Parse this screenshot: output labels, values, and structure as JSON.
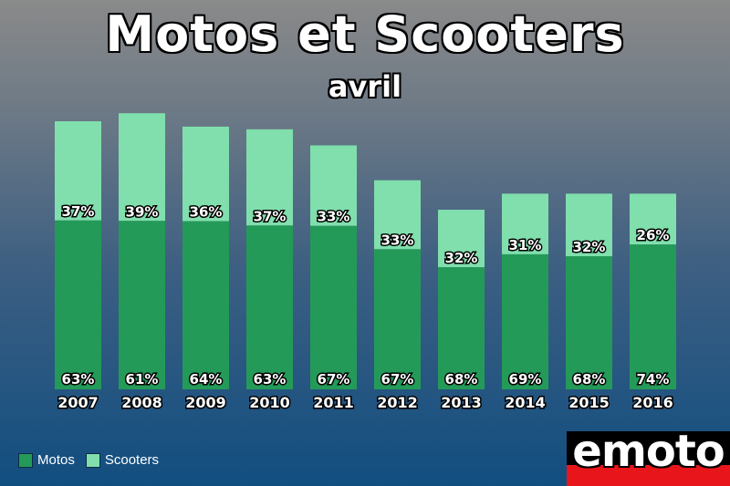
{
  "chart_data": {
    "type": "bar",
    "stacked": true,
    "title": "Motos et Scooters",
    "subtitle": "avril",
    "categories": [
      "2007",
      "2008",
      "2009",
      "2010",
      "2011",
      "2012",
      "2013",
      "2014",
      "2015",
      "2016"
    ],
    "totals_relative": [
      100,
      103,
      98,
      97,
      91,
      78,
      67,
      73,
      73,
      73
    ],
    "series": [
      {
        "name": "Motos",
        "color": "#249a58",
        "percent_labels": [
          "63%",
          "61%",
          "64%",
          "63%",
          "67%",
          "67%",
          "68%",
          "69%",
          "68%",
          "74%"
        ],
        "values": [
          63,
          61,
          64,
          63,
          67,
          67,
          68,
          69,
          68,
          74
        ]
      },
      {
        "name": "Scooters",
        "color": "#80dfac",
        "percent_labels": [
          "37%",
          "39%",
          "36%",
          "37%",
          "33%",
          "33%",
          "32%",
          "31%",
          "32%",
          "26%"
        ],
        "values": [
          37,
          39,
          36,
          37,
          33,
          33,
          32,
          31,
          32,
          26
        ]
      }
    ],
    "legend_position": "bottom-left",
    "grid": false
  },
  "legend": {
    "motos_label": "Motos",
    "scooters_label": "Scooters"
  },
  "logo": {
    "text": "emoto"
  }
}
